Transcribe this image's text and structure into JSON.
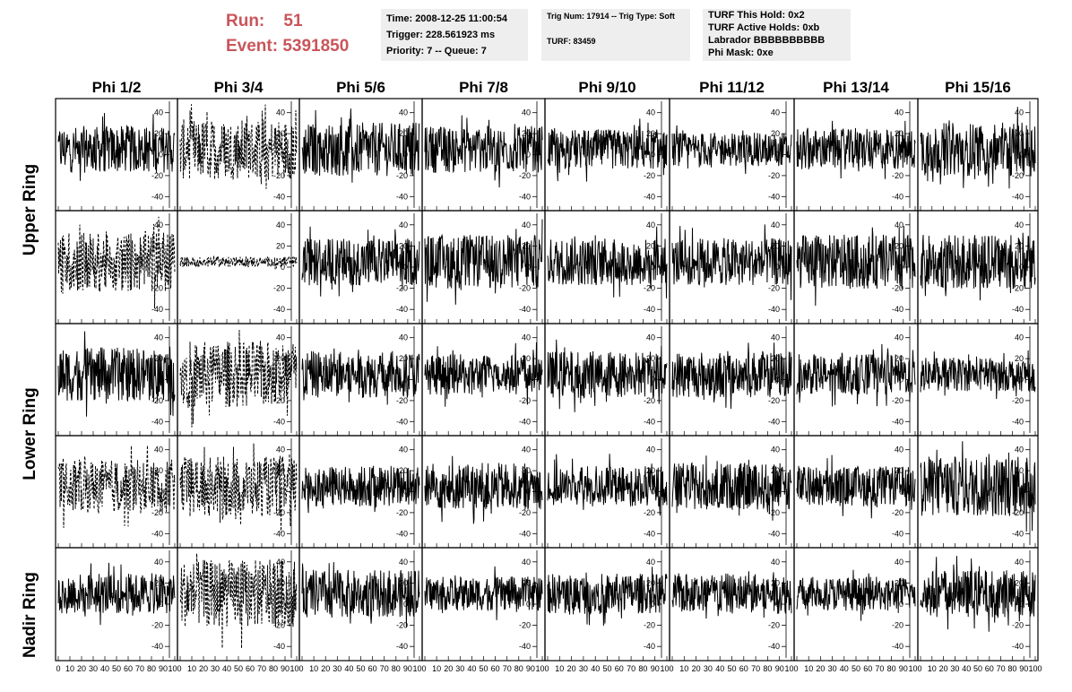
{
  "run": {
    "run_label": "Run:    51",
    "event_label": "Event: 5391850"
  },
  "time_box": {
    "line1": "Time: 2008-12-25 11:00:54",
    "line2": "Trigger: 228.561923 ms",
    "line3": "Priority: 7 -- Queue: 7"
  },
  "trig_box": {
    "line1": "Trig Num: 17914 -- Trig Type: Soft",
    "line2": "TURF: 83459"
  },
  "turf_box": {
    "line1": "TURF This Hold: 0x2",
    "line2": "TURF Active Holds: 0xb",
    "line3": "Labrador BBBBBBBBBB",
    "line4": "Phi Mask: 0xe"
  },
  "phi_labels": [
    "Phi 1/2",
    "Phi 3/4",
    "Phi 5/6",
    "Phi 7/8",
    "Phi 9/10",
    "Phi 11/12",
    "Phi 13/14",
    "Phi 15/16"
  ],
  "ring_labels": {
    "upper": "Upper Ring",
    "lower": "Lower Ring",
    "nadir": "Nadir Ring"
  },
  "colors": {
    "title_red": "#c9555a",
    "box_bg": "#eeeeee",
    "trace": "#000000"
  },
  "chart_data": {
    "type": "line",
    "x_ticks": [
      0,
      10,
      20,
      30,
      40,
      50,
      60,
      70,
      80,
      90,
      100
    ],
    "y_ticks": [
      -40,
      -20,
      0,
      20,
      40
    ],
    "xlim": [
      0,
      100
    ],
    "ylim": [
      -50,
      50
    ],
    "rows": 5,
    "cols": 8,
    "dashed_panels": [
      [
        0,
        1
      ],
      [
        1,
        0
      ],
      [
        1,
        1
      ],
      [
        2,
        1
      ],
      [
        3,
        0
      ],
      [
        3,
        1
      ],
      [
        4,
        1
      ]
    ],
    "baseline_by_row": [
      5,
      5,
      5,
      5,
      10
    ],
    "amplitude": {
      "0": [
        14,
        18,
        16,
        14,
        12,
        10,
        12,
        16
      ],
      "1": [
        18,
        3,
        14,
        16,
        14,
        14,
        16,
        16
      ],
      "2": [
        16,
        20,
        14,
        12,
        14,
        14,
        12,
        10
      ],
      "3": [
        16,
        18,
        12,
        14,
        12,
        14,
        12,
        18
      ],
      "4": [
        12,
        20,
        14,
        10,
        12,
        12,
        10,
        14
      ]
    }
  }
}
